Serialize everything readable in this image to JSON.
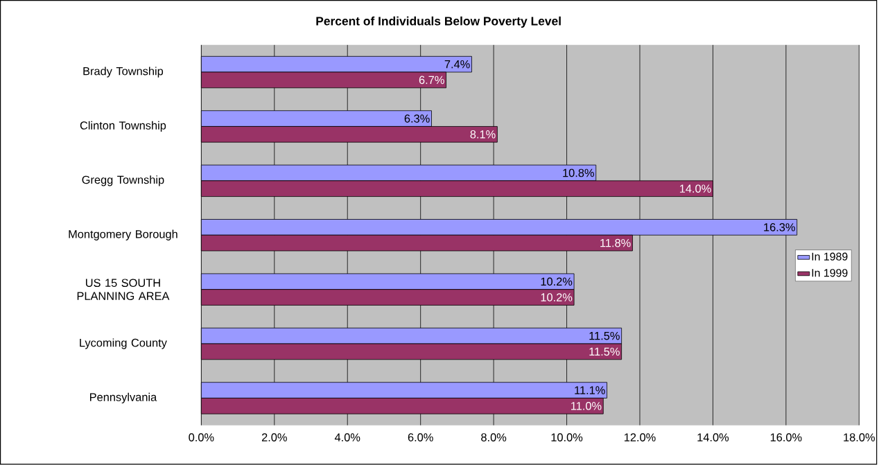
{
  "chart_data": {
    "type": "bar",
    "orientation": "horizontal",
    "title": "Percent of Individuals Below Poverty Level",
    "categories": [
      "Brady Township",
      "Clinton Township",
      "Gregg Township",
      "Montgomery Borough",
      "US 15 SOUTH PLANNING AREA",
      "Lycoming County",
      "Pennsylvania"
    ],
    "series": [
      {
        "name": "In 1989",
        "color": "#9999ff",
        "values": [
          7.4,
          6.3,
          10.8,
          16.3,
          10.2,
          11.5,
          11.1
        ],
        "value_labels": [
          "7.4%",
          "6.3%",
          "10.8%",
          "16.3%",
          "10.2%",
          "11.5%",
          "11.1%"
        ]
      },
      {
        "name": "In 1999",
        "color": "#993366",
        "values": [
          6.7,
          8.1,
          14.0,
          11.8,
          10.2,
          11.5,
          11.0
        ],
        "value_labels": [
          "6.7%",
          "8.1%",
          "14.0%",
          "11.8%",
          "10.2%",
          "11.5%",
          "11.0%"
        ]
      }
    ],
    "xlim": [
      0,
      18
    ],
    "xticks": [
      {
        "value": 0,
        "label": "0.0%"
      },
      {
        "value": 2,
        "label": "2.0%"
      },
      {
        "value": 4,
        "label": "4.0%"
      },
      {
        "value": 6,
        "label": "6.0%"
      },
      {
        "value": 8,
        "label": "8.0%"
      },
      {
        "value": 10,
        "label": "10.0%"
      },
      {
        "value": 12,
        "label": "12.0%"
      },
      {
        "value": 14,
        "label": "14.0%"
      },
      {
        "value": 16,
        "label": "16.0%"
      },
      {
        "value": 18,
        "label": "18.0%"
      }
    ],
    "grid": "x",
    "legend": "right"
  }
}
